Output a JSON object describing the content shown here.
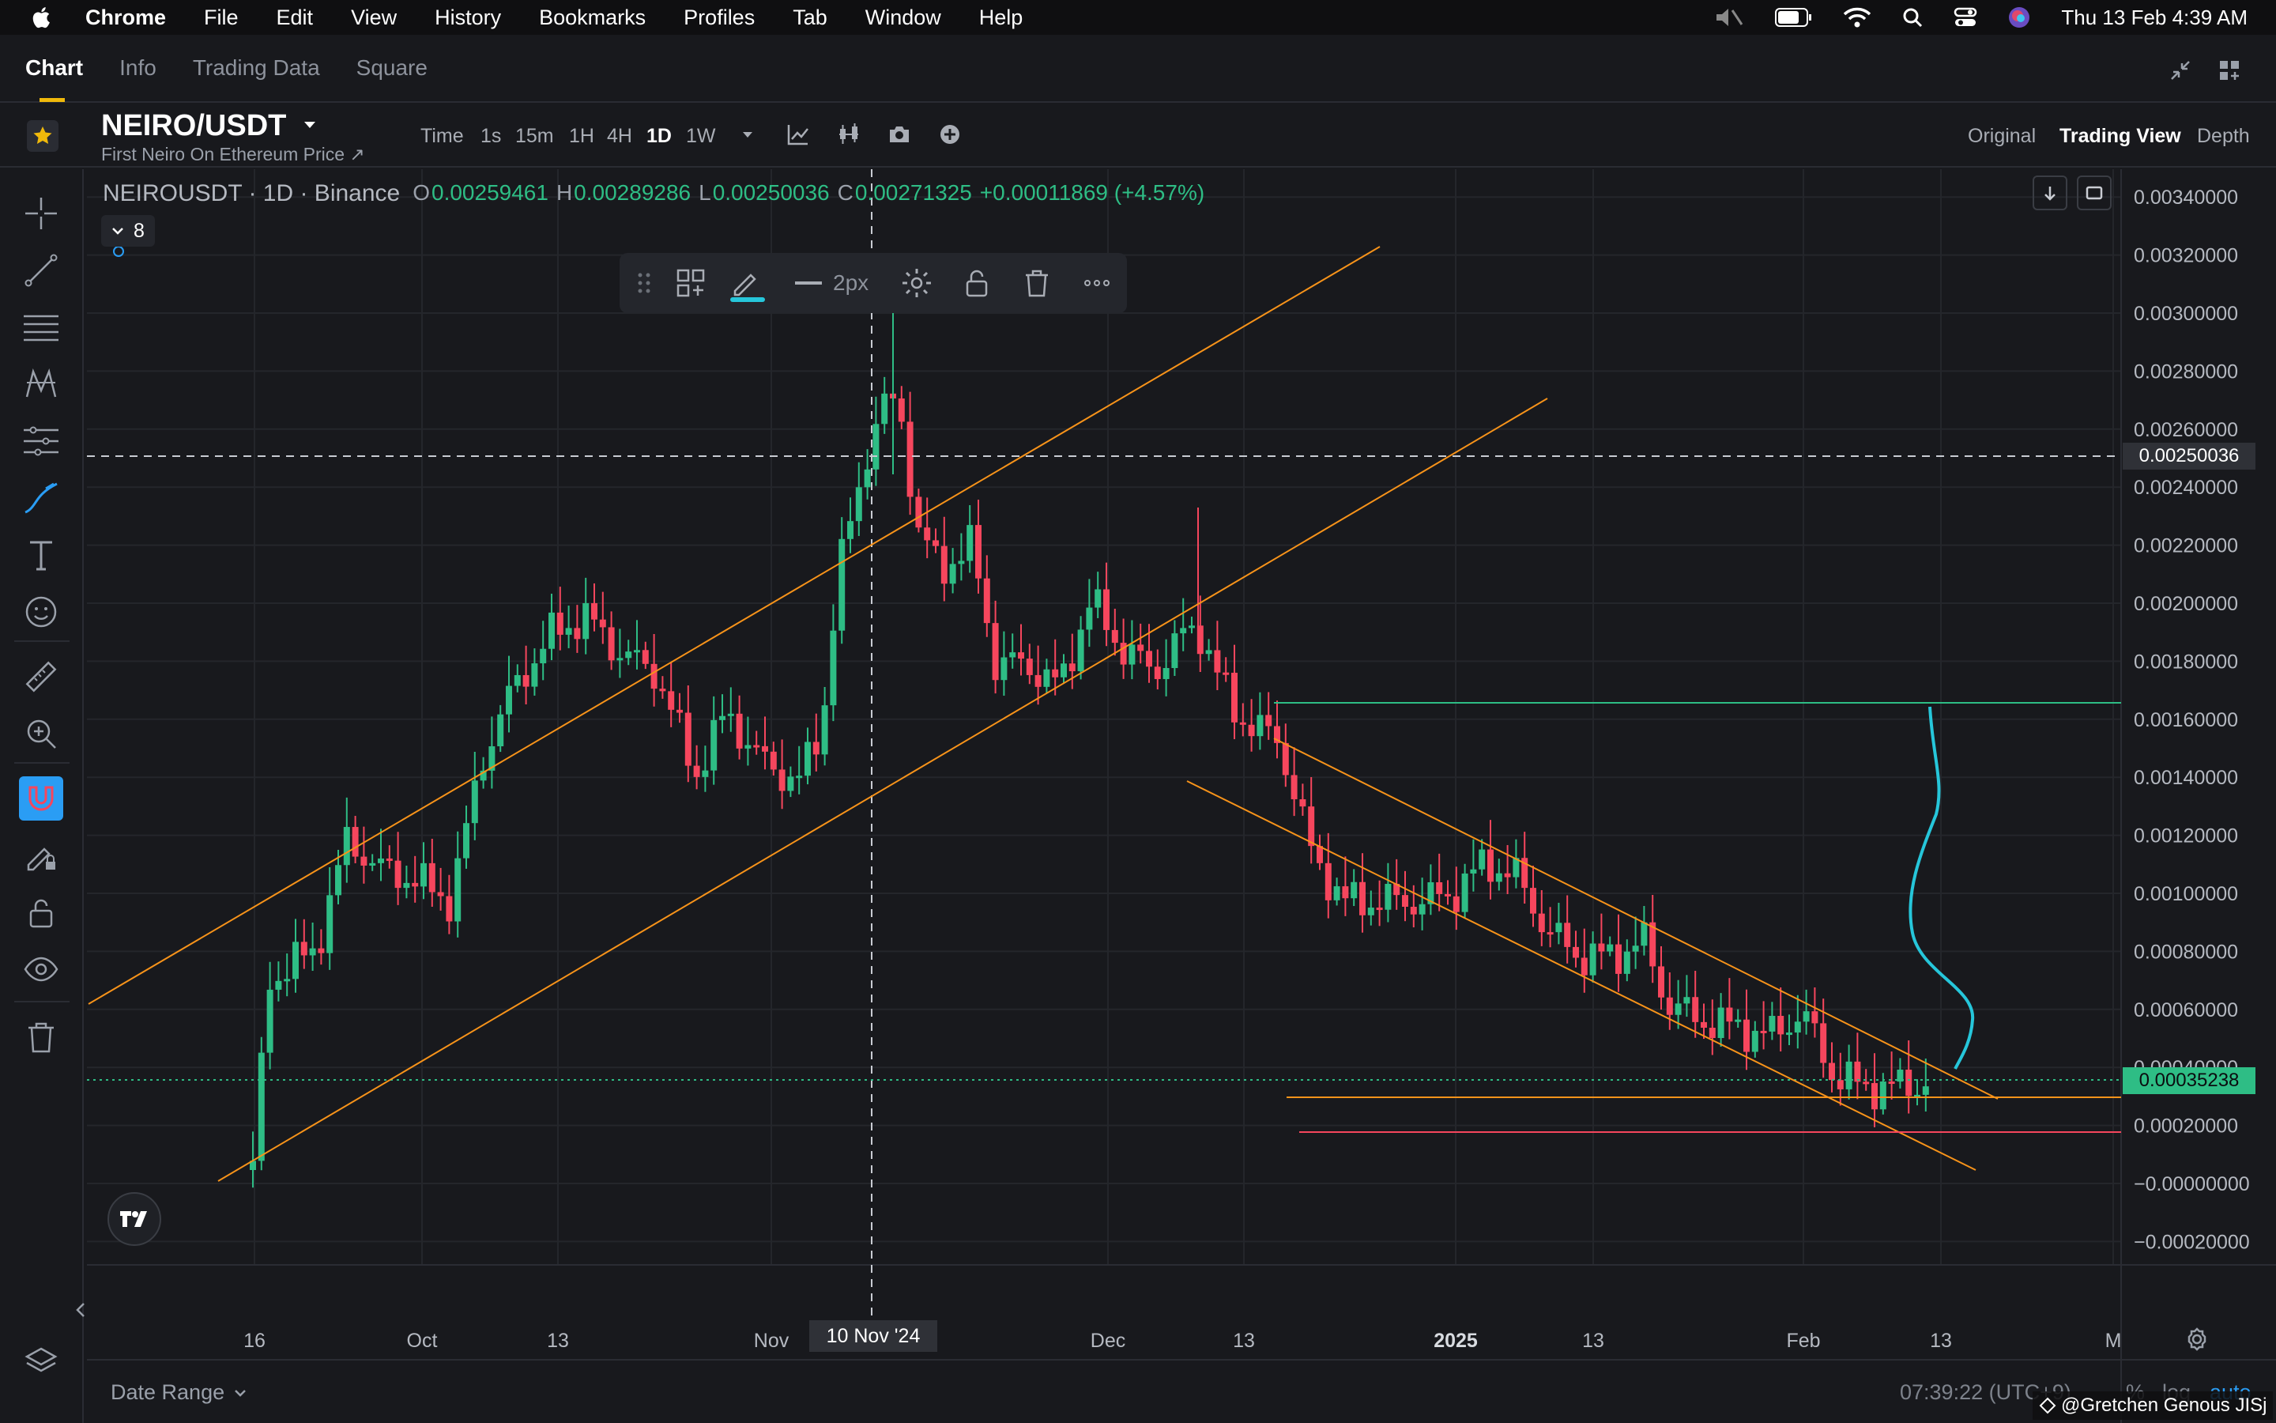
{
  "menubar": {
    "app": "Chrome",
    "items": [
      "File",
      "Edit",
      "View",
      "History",
      "Bookmarks",
      "Profiles",
      "Tab",
      "Window",
      "Help"
    ],
    "clock": "Thu 13 Feb  4:39 AM"
  },
  "page_tabs": [
    "Chart",
    "Info",
    "Trading Data",
    "Square"
  ],
  "symbol": {
    "pair": "NEIRO/USDT",
    "subtitle": "First Neiro On Ethereum Price ↗"
  },
  "timeframes": {
    "items": [
      "Time",
      "1s",
      "15m",
      "1H",
      "4H",
      "1D",
      "1W"
    ],
    "active": "1D"
  },
  "view_switch": {
    "items": [
      "Original",
      "Trading View",
      "Depth"
    ],
    "active": "Trading View"
  },
  "legend": {
    "title": "NEIROUSDT · 1D · Binance",
    "o_label": "O",
    "o": "0.00259461",
    "h_label": "H",
    "h": "0.00289286",
    "l_label": "L",
    "l": "0.00250036",
    "c_label": "C",
    "c": "0.00271325",
    "change": "+0.00011869 (+4.57%)",
    "indicators_count": "8"
  },
  "drawing_toolbar": {
    "width_label": "2px"
  },
  "price_axis": {
    "labels": [
      "0.00340000",
      "0.00320000",
      "0.00300000",
      "0.00280000",
      "0.00260000",
      "0.00240000",
      "0.00220000",
      "0.00200000",
      "0.00180000",
      "0.00160000",
      "0.00140000",
      "0.00120000",
      "0.00100000",
      "0.00080000",
      "0.00060000",
      "0.00040000",
      "0.00020000",
      "−0.00000000",
      "−0.00020000"
    ],
    "crosshair_price": "0.00250036",
    "last_price": "0.00035238"
  },
  "time_axis": {
    "labels": [
      "16",
      "Oct",
      "13",
      "Nov",
      "Dec",
      "13",
      "2025",
      "13",
      "Feb",
      "13",
      "M"
    ],
    "crosshair_date": "10 Nov '24"
  },
  "footer": {
    "date_range": "Date Range",
    "time": "07:39:22 (UTC+9)",
    "percent": "%",
    "log": "log",
    "auto": "auto",
    "watermark": "@Gretchen Genous JISj"
  },
  "colors": {
    "up": "#2ebd85",
    "down": "#f6465d",
    "trendline": "#f7931a",
    "accent": "#f0b90b",
    "blue": "#26c6da"
  },
  "chart_data": {
    "type": "candlestick",
    "title": "NEIROUSDT · 1D · Binance",
    "ylim": [
      -0.0003,
      0.0035
    ],
    "grid": true
  }
}
